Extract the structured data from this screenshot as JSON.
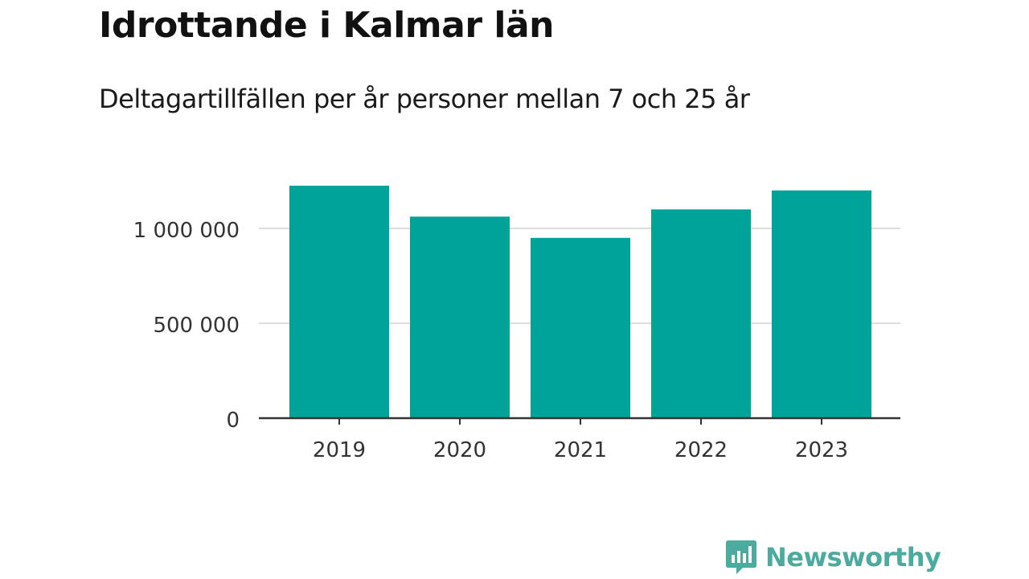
{
  "header": {
    "title": "Idrottande i Kalmar län",
    "subtitle": "Deltagartillfällen per år personer mellan 7 och 25 år"
  },
  "colors": {
    "bar": "#00a398",
    "grid": "#dddddd",
    "axis": "#333333",
    "tick_text": "#333333",
    "brand": "#4aab9e"
  },
  "chart_data": {
    "type": "bar",
    "categories": [
      "2019",
      "2020",
      "2021",
      "2022",
      "2023"
    ],
    "values": [
      1225000,
      1062000,
      950000,
      1100000,
      1200000
    ],
    "ylim": [
      0,
      1300000
    ],
    "yticks": [
      0,
      500000,
      1000000
    ],
    "ytick_labels": [
      "0",
      "500 000",
      "1 000 000"
    ],
    "grid": true,
    "legend": "none"
  },
  "brand": {
    "name": "Newsworthy",
    "icon": "newsworthy-logo-icon"
  }
}
